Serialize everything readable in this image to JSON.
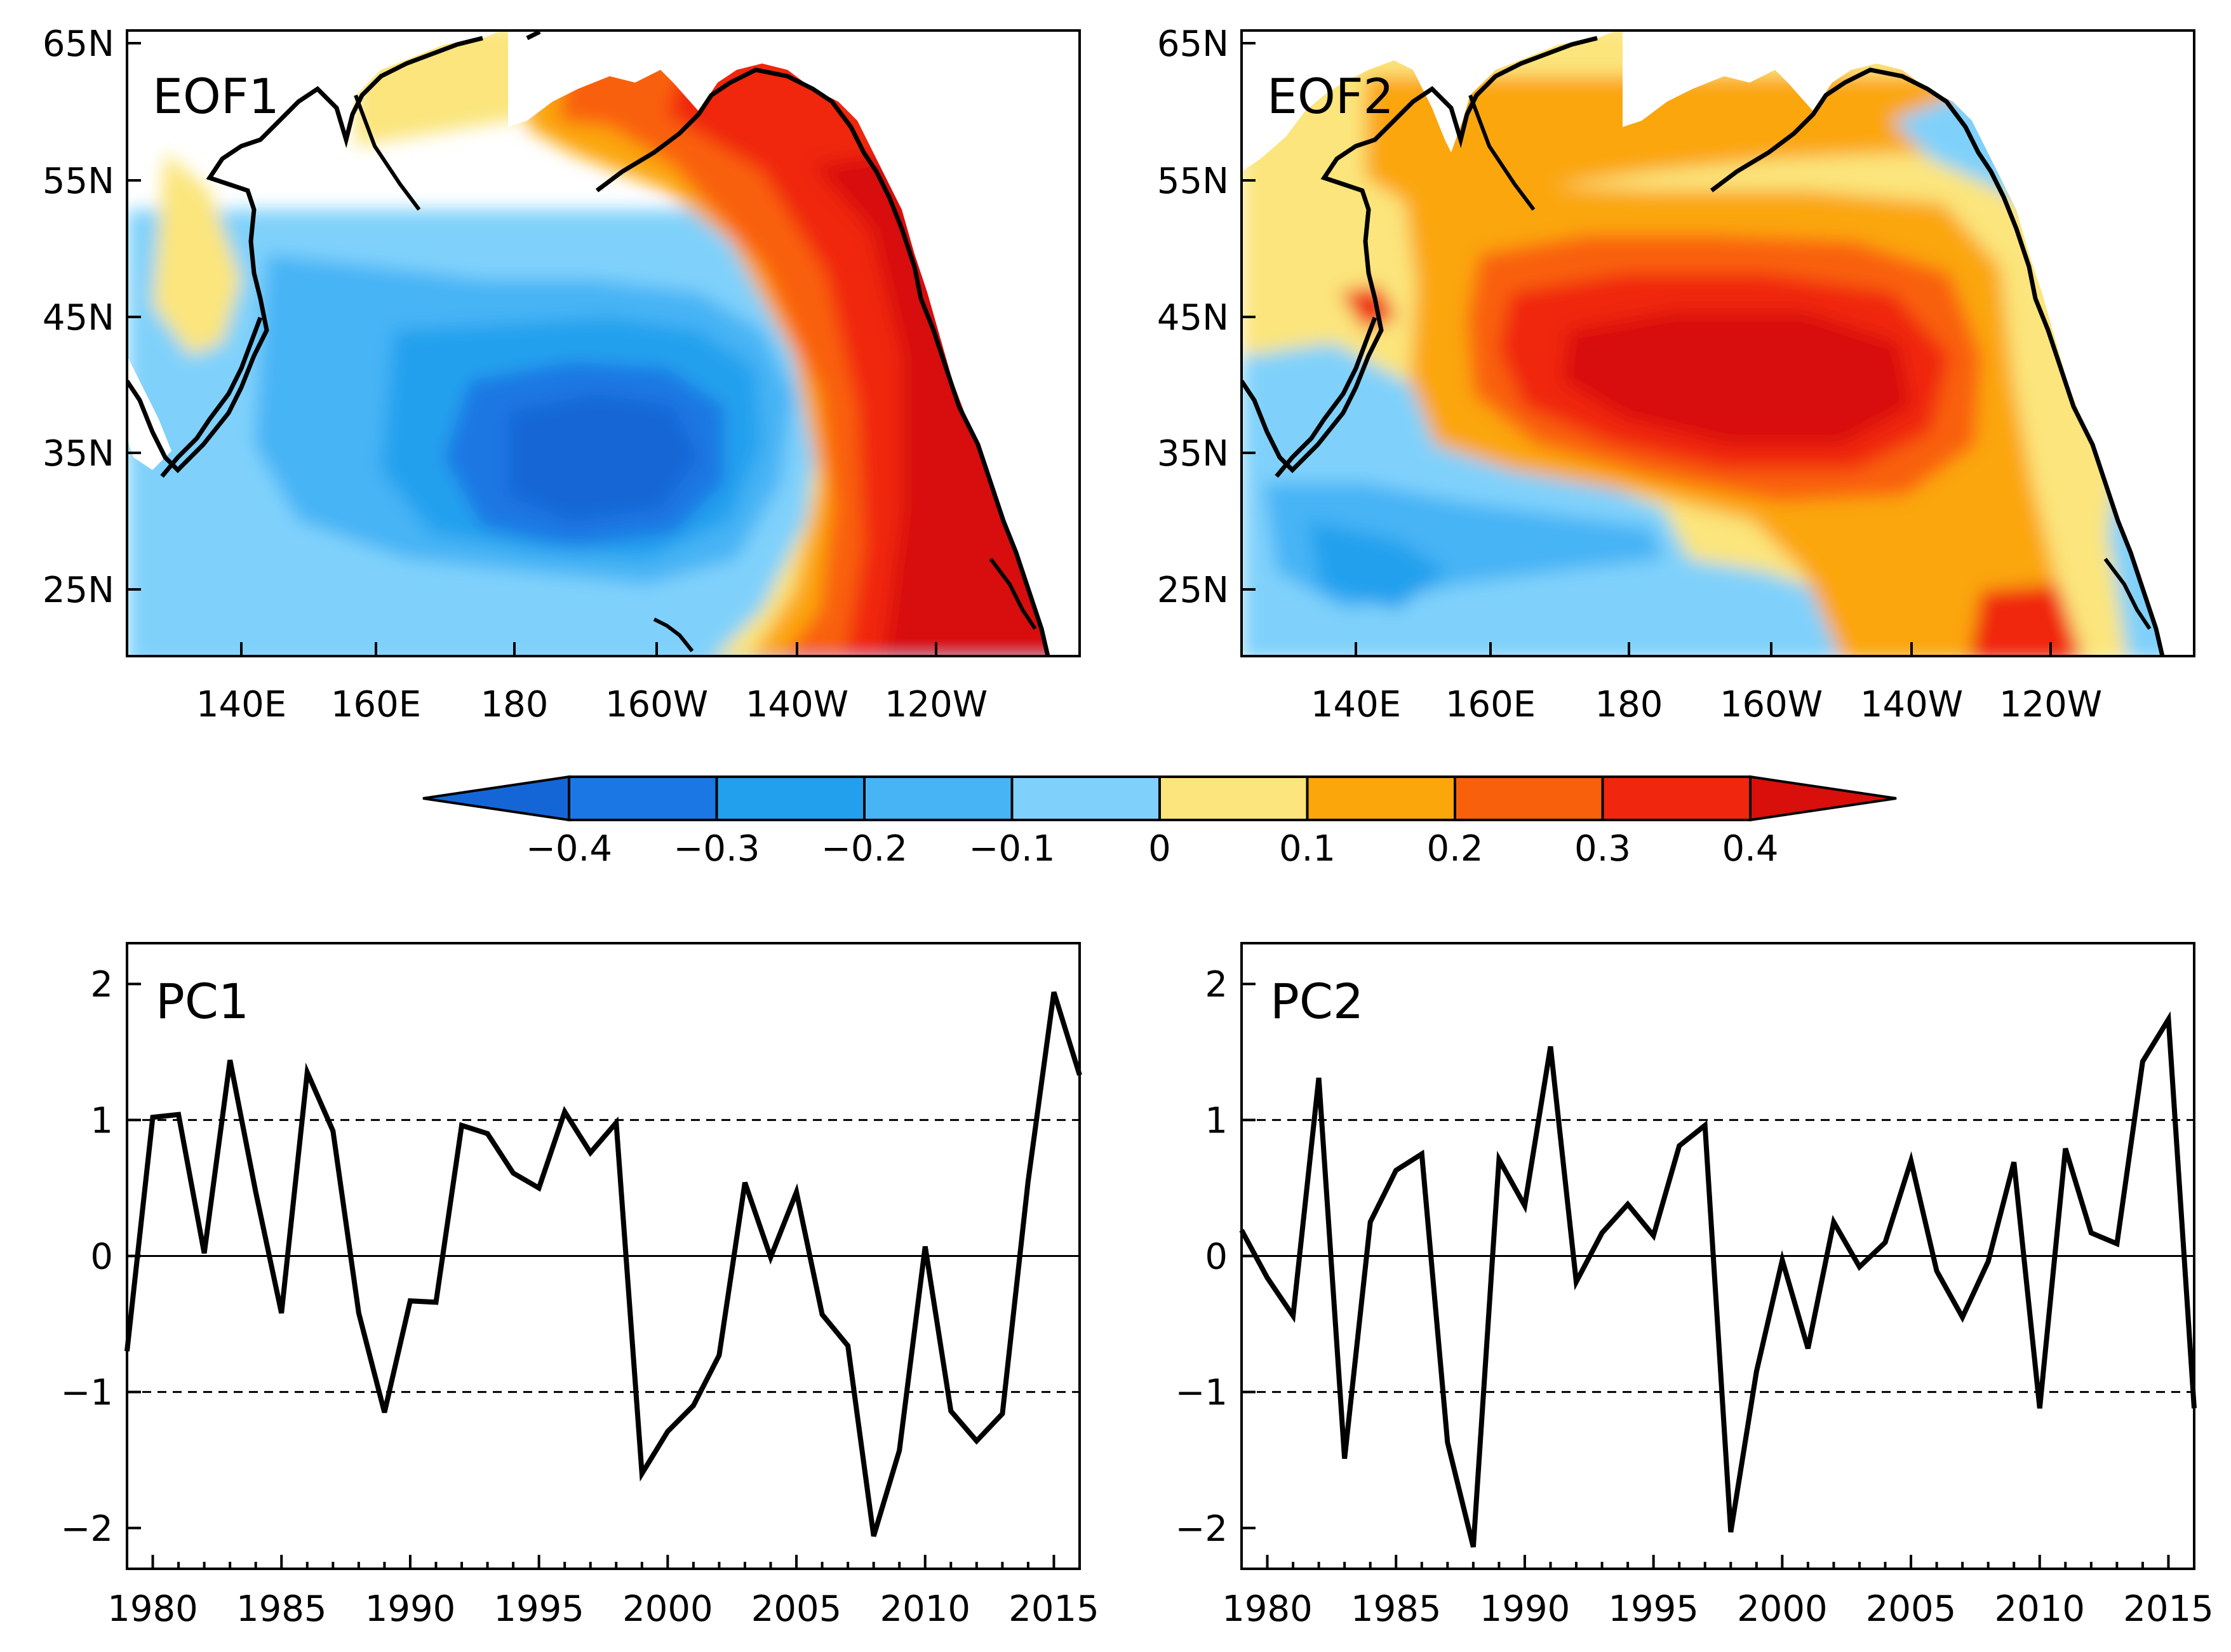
{
  "colorbar": {
    "levels": [
      -0.4,
      -0.3,
      -0.2,
      -0.1,
      0,
      0.1,
      0.2,
      0.3,
      0.4
    ],
    "labels": [
      "−0.4",
      "−0.3",
      "−0.2",
      "−0.1",
      "0",
      "0.1",
      "0.2",
      "0.3",
      "0.4"
    ],
    "colors": [
      "#1466d6",
      "#1a77e3",
      "#22a0ee",
      "#46b4f5",
      "#7fd1fb",
      "#fbe57c",
      "#fba60b",
      "#f9600c",
      "#f0260e",
      "#d80f0a"
    ]
  },
  "map_panels": [
    {
      "title": "EOF1",
      "lat_labels": [
        "65N",
        "55N",
        "45N",
        "35N",
        "25N"
      ],
      "lon_labels": [
        "140E",
        "160E",
        "180",
        "160W",
        "140W",
        "120W"
      ],
      "pattern": "negative west-central North Pacific, positive along North American coast"
    },
    {
      "title": "EOF2",
      "lat_labels": [
        "65N",
        "55N",
        "45N",
        "35N",
        "25N"
      ],
      "lon_labels": [
        "140E",
        "160E",
        "180",
        "160W",
        "140W",
        "120W"
      ],
      "pattern": "positive central North Pacific near 40N, negative subtropics and Gulf of Alaska"
    }
  ],
  "chart_data": [
    {
      "type": "line",
      "title": "PC1",
      "x": [
        1979,
        1980,
        1981,
        1982,
        1983,
        1984,
        1985,
        1986,
        1987,
        1988,
        1989,
        1990,
        1991,
        1992,
        1993,
        1994,
        1995,
        1996,
        1997,
        1998,
        1999,
        2000,
        2001,
        2002,
        2003,
        2004,
        2005,
        2006,
        2007,
        2008,
        2009,
        2010,
        2011,
        2012,
        2013,
        2014,
        2015,
        2016
      ],
      "y": [
        -0.7,
        1.02,
        1.04,
        0.02,
        1.44,
        0.47,
        -0.42,
        1.35,
        0.92,
        -0.42,
        -1.15,
        -0.33,
        -0.34,
        0.96,
        0.9,
        0.61,
        0.5,
        1.06,
        0.76,
        0.98,
        -1.6,
        -1.29,
        -1.1,
        -0.73,
        0.54,
        -0.01,
        0.47,
        -0.43,
        -0.66,
        -2.06,
        -1.43,
        0.07,
        -1.14,
        -1.36,
        -1.16,
        0.55,
        1.94,
        1.33
      ],
      "xlim": [
        1979,
        2016
      ],
      "ylim": [
        -2.3,
        2.3
      ],
      "xticks": [
        "1980",
        "1985",
        "1990",
        "1995",
        "2000",
        "2005",
        "2010",
        "2015"
      ],
      "yticks": [
        "2",
        "1",
        "0",
        "−1",
        "−2"
      ],
      "reference_lines": {
        "dashed": [
          1,
          -1
        ],
        "solid": [
          0
        ]
      }
    },
    {
      "type": "line",
      "title": "PC2",
      "x": [
        1979,
        1980,
        1981,
        1982,
        1983,
        1984,
        1985,
        1986,
        1987,
        1988,
        1989,
        1990,
        1991,
        1992,
        1993,
        1994,
        1995,
        1996,
        1997,
        1998,
        1999,
        2000,
        2001,
        2002,
        2003,
        2004,
        2005,
        2006,
        2007,
        2008,
        2009,
        2010,
        2011,
        2012,
        2013,
        2014,
        2015,
        2016
      ],
      "y": [
        0.19,
        -0.16,
        -0.44,
        1.31,
        -1.49,
        0.25,
        0.63,
        0.75,
        -1.37,
        -2.14,
        0.71,
        0.37,
        1.54,
        -0.19,
        0.17,
        0.38,
        0.15,
        0.81,
        0.96,
        -2.03,
        -0.85,
        -0.03,
        -0.68,
        0.25,
        -0.08,
        0.1,
        0.7,
        -0.11,
        -0.45,
        -0.04,
        0.69,
        -1.12,
        0.79,
        0.17,
        0.09,
        1.43,
        1.74,
        -1.12
      ],
      "xlim": [
        1979,
        2016
      ],
      "ylim": [
        -2.3,
        2.3
      ],
      "xticks": [
        "1980",
        "1985",
        "1990",
        "1995",
        "2000",
        "2005",
        "2010",
        "2015"
      ],
      "yticks": [
        "2",
        "1",
        "0",
        "−1",
        "−2"
      ],
      "reference_lines": {
        "dashed": [
          1,
          -1
        ],
        "solid": [
          0
        ]
      }
    }
  ]
}
